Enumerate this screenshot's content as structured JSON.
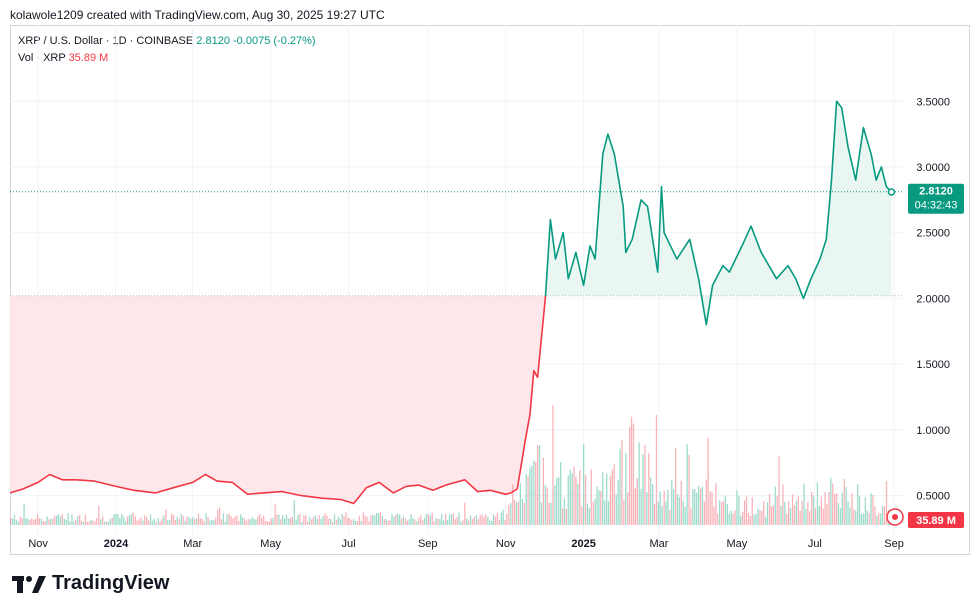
{
  "header": {
    "attribution": "kolawole1209 created with TradingView.com, Aug 30, 2025 19:27 UTC"
  },
  "legend": {
    "symbol": "XRP / U.S. Dollar · 1D · COINBASE",
    "last": "2.8120",
    "change": "-0.0075 (-0.27%)",
    "vol_label": "Vol · XRP",
    "vol_value": "35.89 M"
  },
  "price_badge": {
    "price": "2.8120",
    "countdown": "04:32:43"
  },
  "volume_badge": "35.89 M",
  "footer": {
    "brand": "TradingView"
  },
  "colors": {
    "up": "#089981",
    "down": "#f23645",
    "up_fill": "#e8f5f1",
    "down_fill": "#fde3e6",
    "grid": "#f0f3fa"
  },
  "chart_data": {
    "type": "area",
    "title": "",
    "xlabel": "",
    "ylabel": "",
    "ylim": [
      0.2,
      3.7
    ],
    "x_range": [
      "2023-10-10",
      "2025-09-08"
    ],
    "y_ticks": [
      "0.5000",
      "1.0000",
      "1.5000",
      "2.0000",
      "2.5000",
      "3.0000",
      "3.5000"
    ],
    "x_ticks": [
      {
        "label": "Nov",
        "date": "2023-11-01",
        "bold": false
      },
      {
        "label": "2024",
        "date": "2024-01-01",
        "bold": true
      },
      {
        "label": "Mar",
        "date": "2024-03-01",
        "bold": false
      },
      {
        "label": "May",
        "date": "2024-05-01",
        "bold": false
      },
      {
        "label": "Jul",
        "date": "2024-07-01",
        "bold": false
      },
      {
        "label": "Sep",
        "date": "2024-09-01",
        "bold": false
      },
      {
        "label": "Nov",
        "date": "2024-11-01",
        "bold": false
      },
      {
        "label": "2025",
        "date": "2025-01-01",
        "bold": true
      },
      {
        "label": "Mar",
        "date": "2025-03-01",
        "bold": false
      },
      {
        "label": "May",
        "date": "2025-05-01",
        "bold": false
      },
      {
        "label": "Jul",
        "date": "2025-07-01",
        "bold": false
      },
      {
        "label": "Sep",
        "date": "2025-09-01",
        "bold": false
      }
    ],
    "baseline": 2.02,
    "last_price": 2.812,
    "series": [
      {
        "x": [
          "2023-10-10",
          "2023-10-20",
          "2023-11-01",
          "2023-11-10",
          "2023-11-20",
          "2023-12-01",
          "2023-12-15",
          "2024-01-01",
          "2024-01-15",
          "2024-02-01",
          "2024-02-15",
          "2024-03-01",
          "2024-03-11",
          "2024-03-20",
          "2024-04-01",
          "2024-04-13",
          "2024-04-25",
          "2024-05-10",
          "2024-05-25",
          "2024-06-10",
          "2024-06-25",
          "2024-07-05",
          "2024-07-15",
          "2024-07-25",
          "2024-08-05",
          "2024-08-15",
          "2024-08-25",
          "2024-09-05",
          "2024-09-15",
          "2024-09-30",
          "2024-10-10",
          "2024-10-20",
          "2024-11-01",
          "2024-11-05",
          "2024-11-10",
          "2024-11-13",
          "2024-11-16",
          "2024-11-20",
          "2024-11-23",
          "2024-11-26",
          "2024-12-02",
          "2024-12-06",
          "2024-12-10",
          "2024-12-16",
          "2024-12-20",
          "2024-12-26",
          "2025-01-01",
          "2025-01-06",
          "2025-01-10",
          "2025-01-16",
          "2025-01-20",
          "2025-01-25",
          "2025-02-01",
          "2025-02-03",
          "2025-02-08",
          "2025-02-15",
          "2025-02-20",
          "2025-02-28",
          "2025-03-03",
          "2025-03-05",
          "2025-03-10",
          "2025-03-15",
          "2025-03-25",
          "2025-04-01",
          "2025-04-07",
          "2025-04-12",
          "2025-04-20",
          "2025-04-25",
          "2025-05-05",
          "2025-05-12",
          "2025-05-20",
          "2025-06-01",
          "2025-06-10",
          "2025-06-16",
          "2025-06-22",
          "2025-06-28",
          "2025-07-05",
          "2025-07-10",
          "2025-07-14",
          "2025-07-18",
          "2025-07-22",
          "2025-07-27",
          "2025-08-02",
          "2025-08-08",
          "2025-08-14",
          "2025-08-18",
          "2025-08-22",
          "2025-08-26",
          "2025-08-30"
        ],
        "values": [
          0.52,
          0.55,
          0.6,
          0.66,
          0.62,
          0.62,
          0.61,
          0.57,
          0.54,
          0.52,
          0.56,
          0.6,
          0.66,
          0.61,
          0.6,
          0.51,
          0.52,
          0.53,
          0.5,
          0.48,
          0.47,
          0.44,
          0.56,
          0.6,
          0.52,
          0.57,
          0.58,
          0.54,
          0.58,
          0.62,
          0.53,
          0.54,
          0.51,
          0.52,
          0.55,
          0.72,
          0.9,
          1.12,
          1.45,
          1.4,
          2.0,
          2.6,
          2.3,
          2.5,
          2.15,
          2.35,
          2.1,
          2.4,
          2.3,
          3.1,
          3.25,
          3.1,
          2.7,
          2.35,
          2.45,
          2.75,
          2.7,
          2.2,
          2.85,
          2.5,
          2.4,
          2.3,
          2.45,
          2.15,
          1.8,
          2.1,
          2.25,
          2.2,
          2.4,
          2.55,
          2.35,
          2.15,
          2.25,
          2.15,
          2.0,
          2.15,
          2.3,
          2.45,
          2.9,
          3.5,
          3.45,
          3.15,
          2.9,
          3.3,
          3.1,
          2.9,
          3.0,
          2.85,
          2.81
        ]
      }
    ],
    "volume": {
      "label": "Vol · XRP",
      "last": "35.89 M",
      "relative_profile": [
        {
          "date": "2023-10-10",
          "level": 0.1
        },
        {
          "date": "2024-10-31",
          "level": 0.12
        },
        {
          "date": "2024-11-10",
          "level": 0.35
        },
        {
          "date": "2024-12-01",
          "level": 0.85
        },
        {
          "date": "2024-12-15",
          "level": 0.55
        },
        {
          "date": "2025-01-20",
          "level": 0.5
        },
        {
          "date": "2025-02-05",
          "level": 1.0
        },
        {
          "date": "2025-03-05",
          "level": 0.4
        },
        {
          "date": "2025-04-07",
          "level": 0.45
        },
        {
          "date": "2025-05-15",
          "level": 0.25
        },
        {
          "date": "2025-07-15",
          "level": 0.45
        },
        {
          "date": "2025-08-30",
          "level": 0.25
        }
      ]
    }
  }
}
